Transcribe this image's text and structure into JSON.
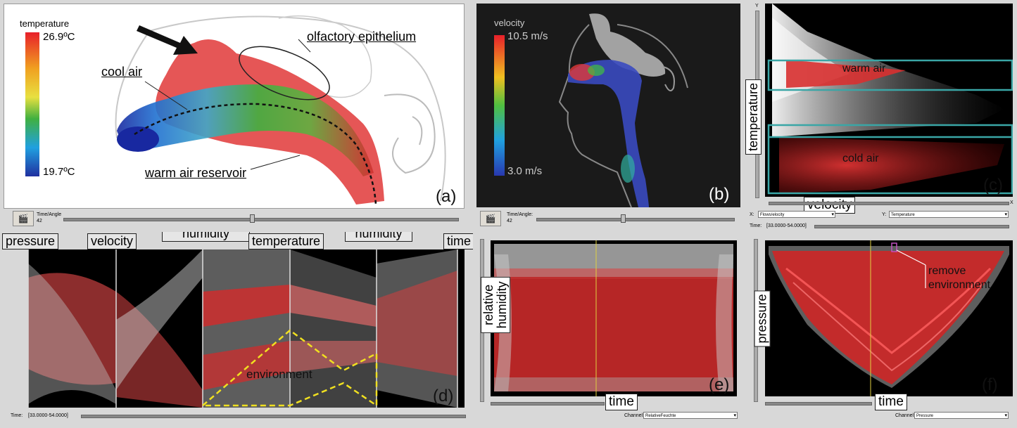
{
  "panel_a": {
    "colorbar_title": "temperature",
    "colorbar_max": "26.9ºC",
    "colorbar_min": "19.7ºC",
    "annotations": {
      "olfactory": "olfactory epithelium",
      "cool_air": "cool air",
      "warm_air": "warm air reservoir"
    },
    "panel_label": "(a)",
    "time_label": "Time/Angle",
    "time_value": "42"
  },
  "panel_b": {
    "colorbar_title": "velocity",
    "colorbar_max": "10.5 m/s",
    "colorbar_min": "3.0 m/s",
    "panel_label": "(b)",
    "time_label": "Time/Angle:",
    "time_value": "42"
  },
  "panel_c": {
    "y_axis": "temperature",
    "x_axis": "velocity",
    "warm_label": "warm air",
    "cold_label": "cold air",
    "panel_label": "(c)",
    "x_select_label": "X:",
    "x_select_value": "Flows/elocity",
    "y_select_label": "Y:",
    "y_select_value": "Temperature",
    "time_label": "Time:",
    "time_range": "[33.0000-54.0000]",
    "top_tick": "Y",
    "right_tick": "X"
  },
  "panel_d": {
    "axes": [
      "pressure",
      "velocity",
      "massfraction humidity",
      "temperature",
      "relative humidity",
      "time"
    ],
    "environment_label": "environment",
    "panel_label": "(d)",
    "time_label": "Time:",
    "time_range": "[33.0000-54.0000]"
  },
  "panel_e": {
    "y_axis": "relative humidity",
    "x_axis": "time",
    "panel_label": "(e)",
    "channel_label": "Channel:",
    "channel_value": "RelativeFeuchte"
  },
  "panel_f": {
    "y_axis": "pressure",
    "x_axis": "time",
    "remove_label": "remove environment",
    "panel_label": "(f)",
    "channel_label": "Channel:",
    "channel_value": "Pressure"
  },
  "colors": {
    "cyan_box": "#3aa6a6",
    "dashed_yellow": "#f0e020",
    "magenta_marker": "#c050c0"
  }
}
